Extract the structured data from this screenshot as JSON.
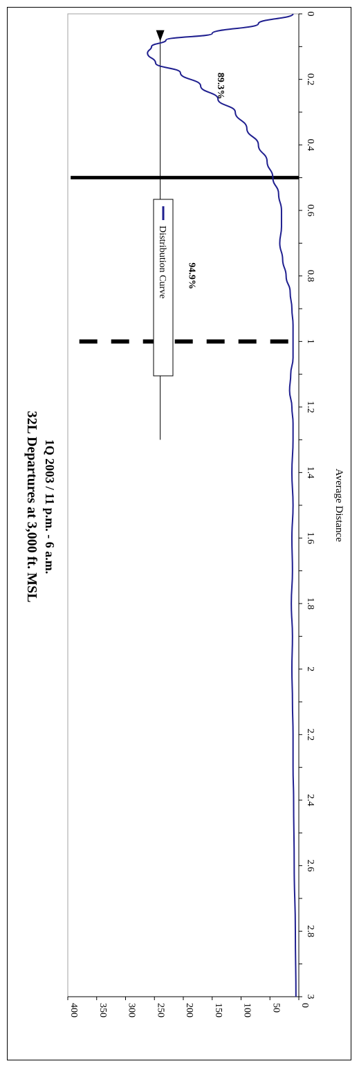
{
  "chart_data": {
    "type": "line",
    "orientation": "rotated-90-clockwise",
    "title": "32L Departures at 3,000 ft. MSL",
    "subtitle": "1Q 2003 / 11 p.m. - 6 a.m.",
    "xlabel": "Average Distance",
    "ylabel": "",
    "xlim": [
      0,
      3
    ],
    "ylim": [
      0,
      400
    ],
    "x_ticks": [
      "0",
      "0.2",
      "0.4",
      "0.6",
      "0.8",
      "1",
      "1.2",
      "1.4",
      "1.6",
      "1.8",
      "2",
      "2.2",
      "2.4",
      "2.6",
      "2.8",
      "3"
    ],
    "y_ticks": [
      "0",
      "50",
      "100",
      "150",
      "200",
      "250",
      "300",
      "350",
      "400"
    ],
    "grid": false,
    "legend": {
      "position": "upper-center",
      "entries": [
        "Distribution Curve"
      ]
    },
    "series": [
      {
        "name": "Distribution Curve",
        "color": "#1f1f8f",
        "x": [
          0,
          0.03,
          0.06,
          0.08,
          0.1,
          0.12,
          0.15,
          0.18,
          0.22,
          0.26,
          0.3,
          0.35,
          0.4,
          0.45,
          0.5,
          0.55,
          0.6,
          0.65,
          0.7,
          0.75,
          0.8,
          0.85,
          0.9,
          0.95,
          1.0,
          1.05,
          1.1,
          1.15,
          1.2,
          1.25,
          1.3,
          1.4,
          1.5,
          1.6,
          1.7,
          1.8,
          1.9,
          2.0,
          2.1,
          2.2,
          2.3,
          2.4,
          2.6,
          2.8,
          3.0
        ],
        "y": [
          10,
          70,
          150,
          230,
          255,
          262,
          248,
          205,
          170,
          140,
          110,
          90,
          70,
          55,
          45,
          35,
          30,
          30,
          33,
          28,
          22,
          15,
          12,
          10,
          10,
          10,
          14,
          16,
          12,
          10,
          10,
          12,
          10,
          12,
          11,
          13,
          11,
          12,
          11,
          10,
          10,
          9,
          8,
          6,
          5
        ]
      }
    ],
    "annotations": {
      "arrow_level": 240,
      "arrow_x_range": [
        0.05,
        1.3
      ],
      "solid_line_x": 0.5,
      "solid_line_top": 395,
      "dashed_line_x": 1.0,
      "dashed_line_top": 380,
      "labels": [
        {
          "text": "89.3%",
          "x": 0.22,
          "y": 140
        },
        {
          "text": "94.9%",
          "x": 0.8,
          "y": 190
        }
      ]
    }
  }
}
